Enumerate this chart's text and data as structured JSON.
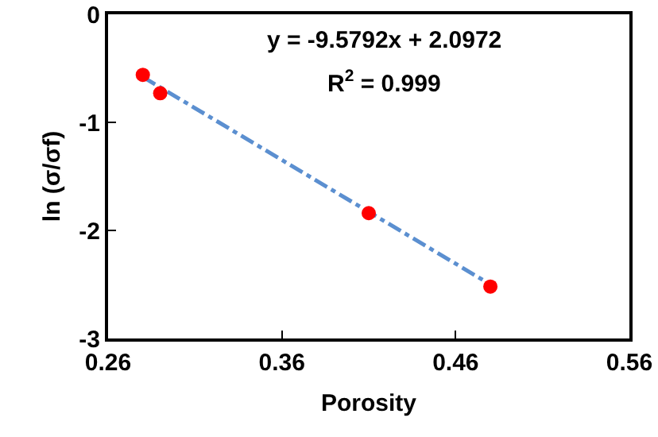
{
  "chart_data": {
    "type": "scatter",
    "xlabel": "Porosity",
    "ylabel": "ln (σ/σf)",
    "annotations": [
      "y = -9.5792x + 2.0972",
      "R$^{2}$ = 0.999"
    ],
    "xlim": [
      0.26,
      0.56
    ],
    "xticks": [
      0.26,
      0.36,
      0.46,
      0.56
    ],
    "ylim": [
      -3,
      0
    ],
    "yticks": [
      0,
      -1,
      -2,
      -3
    ],
    "grid": false,
    "marker": "circle",
    "series": [
      {
        "color": "#ff0000",
        "x": [
          0.28,
          0.29,
          0.41,
          0.48
        ],
        "values": [
          -0.56,
          -0.73,
          -1.84,
          -2.52
        ]
      },
      {
        "type": "line",
        "color": "#5b8fd0",
        "line_style": "dashdot",
        "marker": "none",
        "x": [
          0.28,
          0.48
        ],
        "values": [
          -0.58,
          -2.5
        ]
      }
    ]
  }
}
